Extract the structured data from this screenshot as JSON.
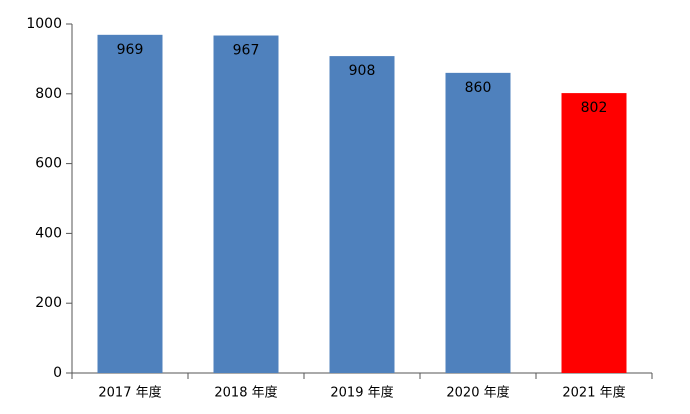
{
  "chart_data": {
    "type": "bar",
    "categories": [
      "2017 年度",
      "2018 年度",
      "2019 年度",
      "2020 年度",
      "2021 年度"
    ],
    "values": [
      969,
      967,
      908,
      860,
      802
    ],
    "colors": [
      "#4f81bd",
      "#4f81bd",
      "#4f81bd",
      "#4f81bd",
      "#ff0000"
    ],
    "ylim": [
      0,
      1000
    ],
    "yticks": [
      0,
      200,
      400,
      600,
      800,
      1000
    ],
    "grid": false
  }
}
